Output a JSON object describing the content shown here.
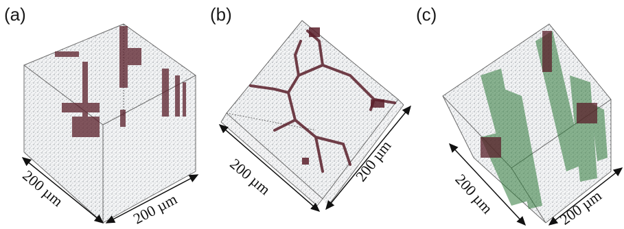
{
  "figure": {
    "panels": [
      {
        "label": "(a)",
        "dimension_labels": [
          "200 µm",
          "200 µm"
        ]
      },
      {
        "label": "(b)",
        "dimension_labels": [
          "200 µm",
          "200 µm"
        ]
      },
      {
        "label": "(c)",
        "dimension_labels": [
          "200 µm",
          "200 µm"
        ]
      }
    ],
    "colors": {
      "speckle": "#8a8f94",
      "phase_dark_red": "#5a1f2a",
      "phase_green": "#2f7a3a",
      "box_edge": "#6a6a6a",
      "arrow": "#111111"
    }
  }
}
